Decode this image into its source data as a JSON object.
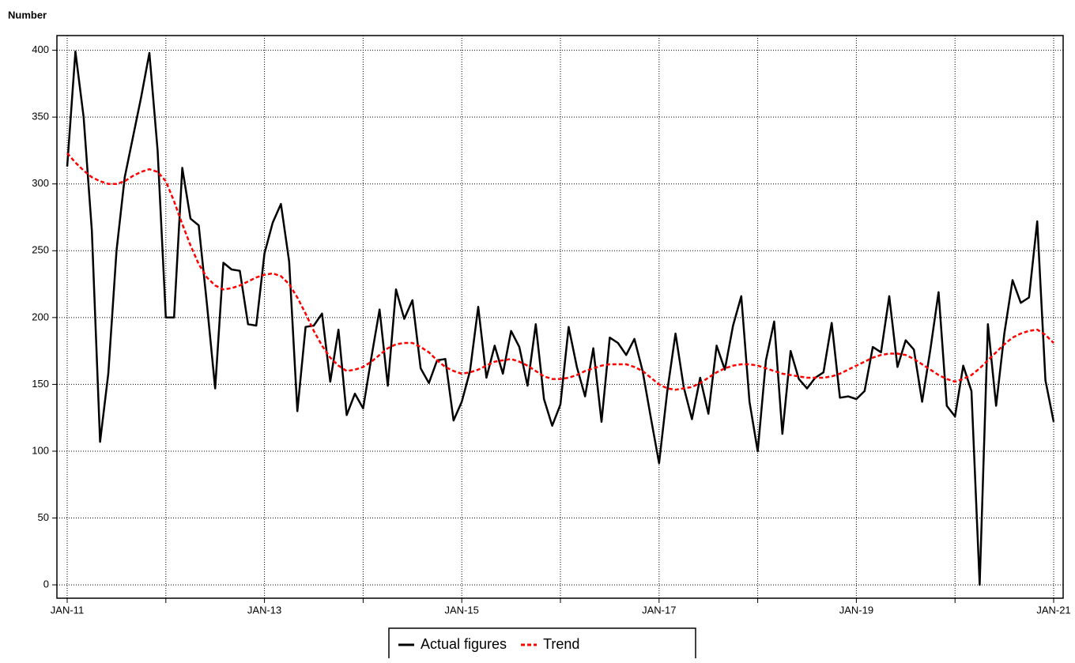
{
  "chart_data": {
    "type": "line",
    "y_label": "Number",
    "categories": [
      "JAN-11",
      null,
      null,
      null,
      null,
      null,
      null,
      null,
      null,
      null,
      null,
      null,
      null,
      null,
      null,
      null,
      null,
      null,
      null,
      null,
      null,
      null,
      null,
      null,
      "JAN-13",
      null,
      null,
      null,
      null,
      null,
      null,
      null,
      null,
      null,
      null,
      null,
      null,
      null,
      null,
      null,
      null,
      null,
      null,
      null,
      null,
      null,
      null,
      null,
      "JAN-15",
      null,
      null,
      null,
      null,
      null,
      null,
      null,
      null,
      null,
      null,
      null,
      null,
      null,
      null,
      null,
      null,
      null,
      null,
      null,
      null,
      null,
      null,
      null,
      "JAN-17",
      null,
      null,
      null,
      null,
      null,
      null,
      null,
      null,
      null,
      null,
      null,
      null,
      null,
      null,
      null,
      null,
      null,
      null,
      null,
      null,
      null,
      null,
      null,
      "JAN-19",
      null,
      null,
      null,
      null,
      null,
      null,
      null,
      null,
      null,
      null,
      null,
      null,
      null,
      null,
      null,
      null,
      null,
      null,
      null,
      null,
      null,
      null,
      null,
      "JAN-21"
    ],
    "series": [
      {
        "name": "Actual figures",
        "color": "#000000",
        "style": "solid",
        "values": [
          313,
          399,
          350,
          265,
          107,
          158,
          250,
          305,
          335,
          365,
          398,
          325,
          200,
          200,
          312,
          274,
          269,
          210,
          147,
          241,
          236,
          235,
          195,
          194,
          248,
          271,
          285,
          242,
          130,
          193,
          194,
          203,
          152,
          191,
          127,
          143,
          132,
          170,
          206,
          149,
          221,
          199,
          213,
          162,
          151,
          168,
          169,
          123,
          137,
          160,
          208,
          155,
          179,
          158,
          190,
          178,
          149,
          195,
          139,
          119,
          135,
          193,
          163,
          141,
          177,
          122,
          185,
          181,
          172,
          184,
          160,
          125,
          91,
          145,
          188,
          148,
          124,
          155,
          128,
          179,
          161,
          194,
          216,
          137,
          100,
          168,
          197,
          113,
          175,
          154,
          147,
          155,
          159,
          196,
          140,
          141,
          139,
          145,
          178,
          174,
          216,
          163,
          183,
          176,
          137,
          176,
          219,
          134,
          126,
          164,
          145,
          0,
          195,
          134,
          188,
          228,
          211,
          215,
          272,
          153,
          122
        ]
      },
      {
        "name": "Trend",
        "color": "#ff0000",
        "style": "dashed",
        "values": [
          323,
          316,
          310,
          305,
          302,
          300,
          300,
          302,
          306,
          309,
          311,
          309,
          302,
          287,
          270,
          254,
          240,
          230,
          224,
          221,
          222,
          224,
          227,
          230,
          232,
          233,
          231,
          225,
          215,
          203,
          190,
          179,
          170,
          164,
          160,
          161,
          163,
          167,
          172,
          177,
          180,
          181,
          181,
          178,
          174,
          168,
          163,
          160,
          158,
          159,
          161,
          164,
          167,
          168,
          169,
          167,
          164,
          160,
          156,
          154,
          154,
          155,
          157,
          160,
          162,
          164,
          165,
          165,
          165,
          163,
          160,
          155,
          150,
          147,
          146,
          147,
          148,
          151,
          155,
          159,
          162,
          164,
          165,
          165,
          164,
          162,
          160,
          158,
          157,
          156,
          155,
          155,
          155,
          156,
          158,
          161,
          164,
          167,
          170,
          172,
          173,
          173,
          172,
          169,
          165,
          161,
          157,
          154,
          152,
          154,
          157,
          162,
          168,
          174,
          180,
          185,
          188,
          190,
          191,
          187,
          181
        ]
      }
    ],
    "ylim": [
      -10,
      411
    ],
    "yticks": [
      0,
      50,
      100,
      150,
      200,
      250,
      300,
      350,
      400
    ],
    "grid": {
      "y": true,
      "x_every": 12
    },
    "legend": "bottom"
  }
}
